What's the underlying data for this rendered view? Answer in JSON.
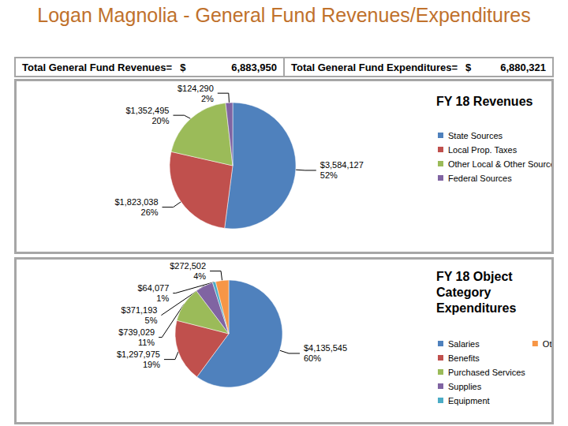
{
  "title": "Logan Magnolia - General Fund Revenues/Expenditures",
  "totals": [
    {
      "label": "Total General Fund Revenues=",
      "currency": "$",
      "amount": "6,883,950"
    },
    {
      "label": "Total General Fund Expenditures=",
      "currency": "$",
      "amount": "6,880,321"
    }
  ],
  "chart_data": [
    {
      "type": "pie",
      "title": "FY 18 Revenues",
      "categories": [
        "State Sources",
        "Local Prop. Taxes",
        "Other Local & Other Sources",
        "Federal Sources"
      ],
      "values": [
        3584127,
        1823038,
        1352495,
        124290
      ],
      "value_labels": [
        "$3,584,127\n52%",
        "$1,823,038\n26%",
        "$1,352,495\n20%",
        "$124,290\n2%"
      ],
      "colors": [
        "#4f81bd",
        "#c0504d",
        "#9bbb59",
        "#8064a2"
      ],
      "data_labels": true,
      "legend": "right"
    },
    {
      "type": "pie",
      "title": "FY 18 Object Category Expenditures",
      "categories": [
        "Salaries",
        "Benefits",
        "Purchased Services",
        "Supplies",
        "Equipment",
        "Other Expenses"
      ],
      "values": [
        4135545,
        1297975,
        739029,
        371193,
        64077,
        272502
      ],
      "value_labels": [
        "$4,135,545\n60%",
        "$1,297,975\n19%",
        "$739,029\n11%",
        "$371,193\n5%",
        "$64,077\n1%",
        "$272,502\n4%"
      ],
      "colors": [
        "#4f81bd",
        "#c0504d",
        "#9bbb59",
        "#8064a2",
        "#4bacc6",
        "#f79646"
      ],
      "data_labels": true,
      "legend": "right"
    }
  ]
}
